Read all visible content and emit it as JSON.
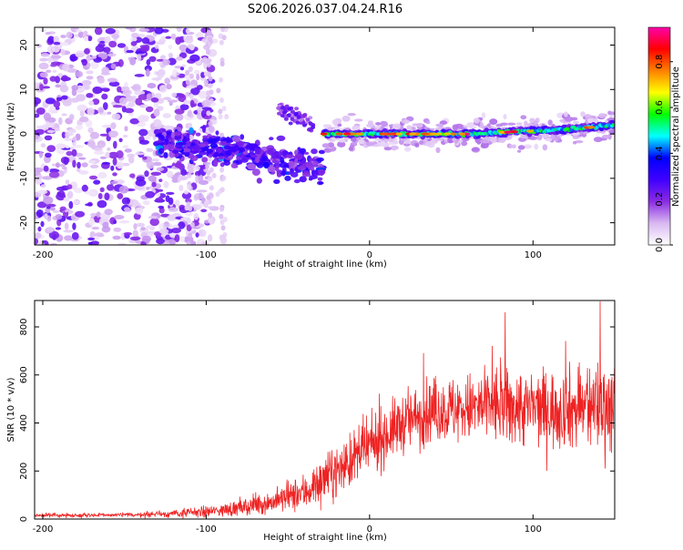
{
  "title": "S206.2026.037.04.24.R16",
  "chart_data": [
    {
      "type": "heatmap",
      "name": "spectrogram",
      "xlabel": "Height of straight line (km)",
      "ylabel": "Frequency (Hz)",
      "xlim": [
        -205,
        150
      ],
      "ylim": [
        -25,
        24
      ],
      "xticks": [
        -200,
        -100,
        0,
        100
      ],
      "yticks": [
        -20,
        -10,
        0,
        10,
        20
      ],
      "colorbar": {
        "label": "Normalized spectral amplitude",
        "range": [
          0,
          0.95
        ],
        "ticks": [
          0.0,
          0.2,
          0.4,
          0.6,
          0.8
        ],
        "tick_labels": [
          "0.0",
          "0.2",
          "0.4",
          "0.6",
          "0.8"
        ],
        "colormap": [
          "#ffffff",
          "#d9b8f2",
          "#8a2be2",
          "#3f00ff",
          "#0000ff",
          "#00ffff",
          "#00ff00",
          "#ffff00",
          "#ff8000",
          "#ff0000",
          "#ff00aa"
        ]
      },
      "features": [
        {
          "label": "scattered noise",
          "x_range": [
            -205,
            -105
          ],
          "freq_range": [
            -25,
            24
          ],
          "amplitude": 0.08
        },
        {
          "label": "descending branch",
          "x": [
            -125,
            -100,
            -80,
            -60,
            -40,
            -30
          ],
          "freq": [
            -2,
            -3,
            -4,
            -6,
            -7,
            -8
          ],
          "amplitude": 0.3
        },
        {
          "label": "upper branch",
          "x": [
            -55,
            -45,
            -35
          ],
          "freq": [
            6,
            4,
            2
          ],
          "amplitude": 0.25
        },
        {
          "label": "main trace",
          "x": [
            -28,
            0,
            30,
            60,
            90,
            120,
            150
          ],
          "freq": [
            0,
            0,
            0,
            0,
            0.5,
            1,
            2
          ],
          "amplitude": 0.9
        }
      ]
    },
    {
      "type": "line",
      "name": "snr",
      "xlabel": "Height of straight line (km)",
      "ylabel": "SNR (10 * v/v)",
      "xlim": [
        -205,
        150
      ],
      "ylim": [
        0,
        910
      ],
      "xticks": [
        -200,
        -100,
        0,
        100
      ],
      "yticks": [
        0,
        200,
        400,
        600,
        800
      ],
      "color": "#ee2222",
      "series_envelope": {
        "x": [
          -205,
          -150,
          -120,
          -100,
          -80,
          -60,
          -40,
          -20,
          0,
          20,
          40,
          60,
          80,
          100,
          120,
          150
        ],
        "mean": [
          15,
          17,
          22,
          30,
          45,
          70,
          110,
          200,
          300,
          400,
          450,
          460,
          470,
          460,
          455,
          480
        ],
        "noise": [
          6,
          7,
          12,
          18,
          25,
          35,
          60,
          80,
          90,
          95,
          100,
          110,
          130,
          120,
          130,
          160
        ]
      },
      "peaks": [
        {
          "x": 83,
          "y": 860
        },
        {
          "x": 141,
          "y": 905
        },
        {
          "x": 120,
          "y": 740
        },
        {
          "x": 75,
          "y": 720
        },
        {
          "x": 33,
          "y": 690
        }
      ]
    }
  ]
}
